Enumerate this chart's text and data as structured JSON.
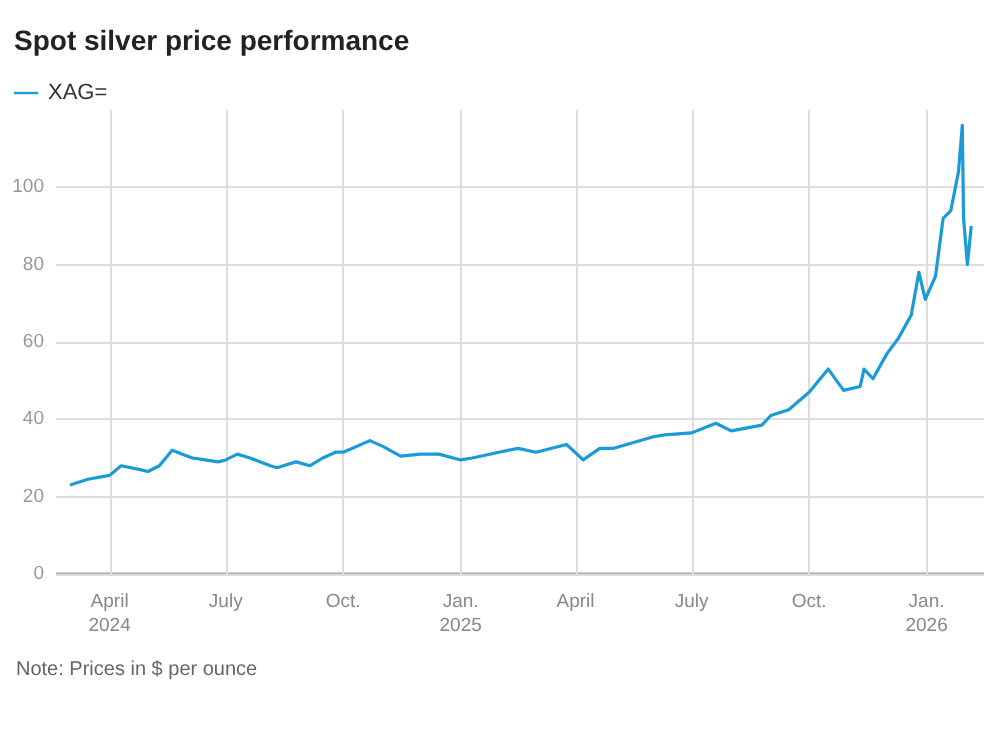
{
  "chart_data": {
    "type": "line",
    "title": "Spot silver price performance",
    "legend": "top left",
    "grid": true,
    "x": [
      "2024-03-01",
      "2024-03-15",
      "2024-04-01",
      "2024-04-10",
      "2024-04-25",
      "2024-05-01",
      "2024-05-10",
      "2024-05-20",
      "2024-05-28",
      "2024-06-05",
      "2024-06-15",
      "2024-06-25",
      "2024-07-01",
      "2024-07-10",
      "2024-07-20",
      "2024-08-05",
      "2024-08-10",
      "2024-08-25",
      "2024-09-05",
      "2024-09-15",
      "2024-09-25",
      "2024-10-01",
      "2024-10-22",
      "2024-11-01",
      "2024-11-15",
      "2024-12-01",
      "2024-12-15",
      "2025-01-01",
      "2025-01-10",
      "2025-01-31",
      "2025-02-15",
      "2025-03-01",
      "2025-03-25",
      "2025-04-07",
      "2025-04-20",
      "2025-05-01",
      "2025-06-01",
      "2025-06-10",
      "2025-07-01",
      "2025-07-20",
      "2025-08-01",
      "2025-08-25",
      "2025-09-01",
      "2025-09-15",
      "2025-10-01",
      "2025-10-16",
      "2025-10-28",
      "2025-11-10",
      "2025-11-13",
      "2025-11-20",
      "2025-12-01",
      "2025-12-10",
      "2025-12-20",
      "2025-12-26",
      "2025-12-31",
      "2026-01-08",
      "2026-01-14",
      "2026-01-20",
      "2026-01-26",
      "2026-01-29",
      "2026-01-30",
      "2026-02-02",
      "2026-02-05"
    ],
    "series": [
      {
        "name": "XAG=",
        "color": "#1a9bd7",
        "values": [
          23,
          24.5,
          25.5,
          28,
          27,
          26.5,
          28,
          32,
          31,
          30,
          29.5,
          29,
          29.5,
          31,
          30,
          28,
          27.5,
          29,
          28,
          30,
          31.5,
          31.5,
          34.5,
          33,
          30.5,
          31,
          31,
          29.5,
          30,
          31.5,
          32.5,
          31.5,
          33.5,
          29.5,
          32.5,
          32.5,
          35.5,
          36,
          36.5,
          39,
          37,
          38.5,
          41,
          42.5,
          47,
          53,
          47.5,
          48.5,
          53,
          50.5,
          57,
          61,
          67,
          78,
          71,
          77,
          92,
          94,
          104,
          116,
          92,
          80,
          90
        ]
      }
    ],
    "xlim": [
      "2024-02-19",
      "2026-02-15"
    ],
    "xticks": [
      {
        "value": "2024-04-01",
        "label": "April\n2024"
      },
      {
        "value": "2024-07-01",
        "label": "July"
      },
      {
        "value": "2024-10-01",
        "label": "Oct."
      },
      {
        "value": "2025-01-01",
        "label": "Jan.\n2025"
      },
      {
        "value": "2025-04-01",
        "label": "April"
      },
      {
        "value": "2025-07-01",
        "label": "July"
      },
      {
        "value": "2025-10-01",
        "label": "Oct."
      },
      {
        "value": "2026-01-01",
        "label": "Jan.\n2026"
      }
    ],
    "ylim": [
      0,
      120
    ],
    "yticks": [
      0,
      20,
      40,
      60,
      80,
      100
    ],
    "annotations": [
      "Note: Prices in $ per ounce"
    ]
  }
}
